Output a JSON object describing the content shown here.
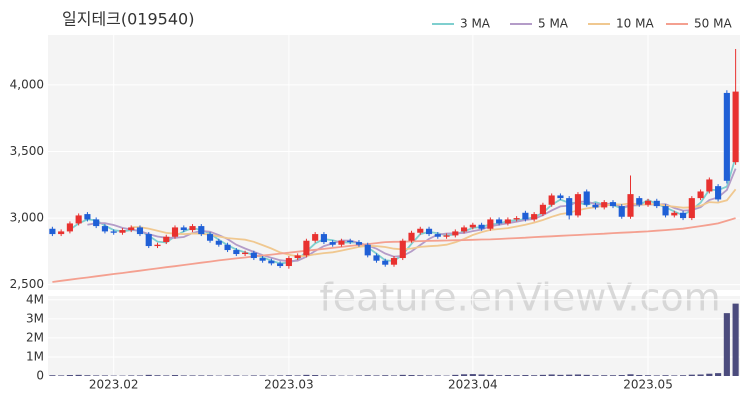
{
  "chart_data": {
    "type": "candlestick",
    "title": "일지테크(019540)",
    "watermark": "feature.enViewV.com",
    "categories": [
      null,
      null,
      null,
      null,
      null,
      null,
      null,
      "2023.02",
      null,
      null,
      null,
      null,
      null,
      null,
      null,
      null,
      null,
      null,
      null,
      null,
      null,
      null,
      null,
      null,
      null,
      null,
      null,
      "2023.03",
      null,
      null,
      null,
      null,
      null,
      null,
      null,
      null,
      null,
      null,
      null,
      null,
      null,
      null,
      null,
      null,
      null,
      null,
      null,
      null,
      "2023.04",
      null,
      null,
      null,
      null,
      null,
      null,
      null,
      null,
      null,
      null,
      null,
      null,
      null,
      null,
      null,
      null,
      null,
      null,
      null,
      "2023.05",
      null,
      null,
      null,
      null,
      null,
      null,
      null,
      null,
      null,
      null
    ],
    "open": [
      2920,
      2880,
      2900,
      2960,
      3030,
      2990,
      2940,
      2900,
      2890,
      2910,
      2930,
      2880,
      2790,
      2820,
      2860,
      2930,
      2910,
      2940,
      2880,
      2830,
      2800,
      2760,
      2730,
      2740,
      2700,
      2680,
      2660,
      2640,
      2700,
      2720,
      2830,
      2880,
      2820,
      2800,
      2830,
      2820,
      2800,
      2720,
      2680,
      2650,
      2700,
      2830,
      2890,
      2920,
      2880,
      2860,
      2870,
      2900,
      2930,
      2950,
      2920,
      2990,
      2960,
      2990,
      3040,
      2990,
      3030,
      3100,
      3170,
      3150,
      3020,
      3200,
      3100,
      3080,
      3120,
      3090,
      3010,
      3150,
      3100,
      3130,
      3090,
      3020,
      3040,
      3000,
      3150,
      3200,
      3240,
      3940,
      3420
    ],
    "high": [
      2935,
      2915,
      2975,
      3035,
      3045,
      3005,
      2955,
      2915,
      2925,
      2945,
      2945,
      2895,
      2815,
      2875,
      2945,
      2945,
      2955,
      2955,
      2895,
      2845,
      2815,
      2775,
      2755,
      2755,
      2715,
      2695,
      2675,
      2715,
      2735,
      2845,
      2895,
      2895,
      2835,
      2845,
      2845,
      2835,
      2815,
      2735,
      2695,
      2715,
      2845,
      2905,
      2935,
      2935,
      2895,
      2885,
      2915,
      2945,
      2965,
      2965,
      3005,
      3005,
      3005,
      3015,
      3055,
      3045,
      3115,
      3185,
      3185,
      3165,
      3195,
      3215,
      3115,
      3135,
      3135,
      3105,
      3320,
      3165,
      3145,
      3145,
      3105,
      3055,
      3055,
      3165,
      3215,
      3305,
      3255,
      3960,
      4270
    ],
    "low": [
      2865,
      2865,
      2885,
      2945,
      2975,
      2925,
      2885,
      2875,
      2875,
      2895,
      2865,
      2775,
      2775,
      2805,
      2845,
      2895,
      2895,
      2865,
      2815,
      2785,
      2745,
      2715,
      2715,
      2685,
      2665,
      2645,
      2625,
      2620,
      2685,
      2705,
      2815,
      2805,
      2785,
      2785,
      2805,
      2785,
      2705,
      2665,
      2635,
      2635,
      2685,
      2815,
      2875,
      2865,
      2845,
      2845,
      2855,
      2885,
      2915,
      2905,
      2905,
      2945,
      2945,
      2975,
      2975,
      2975,
      3015,
      3085,
      3135,
      2990,
      3005,
      3085,
      3065,
      3065,
      3075,
      2995,
      2995,
      3085,
      3085,
      3075,
      3005,
      3005,
      2985,
      2985,
      3135,
      3185,
      3125,
      3260,
      3400
    ],
    "close": [
      2880,
      2900,
      2960,
      3020,
      2990,
      2940,
      2900,
      2890,
      2910,
      2930,
      2880,
      2790,
      2800,
      2860,
      2930,
      2910,
      2940,
      2880,
      2830,
      2800,
      2760,
      2730,
      2740,
      2700,
      2680,
      2660,
      2640,
      2700,
      2720,
      2830,
      2880,
      2820,
      2800,
      2830,
      2820,
      2800,
      2720,
      2680,
      2650,
      2700,
      2830,
      2890,
      2920,
      2880,
      2860,
      2870,
      2900,
      2930,
      2950,
      2920,
      2990,
      2960,
      2990,
      3000,
      2990,
      3030,
      3100,
      3170,
      3150,
      3020,
      3180,
      3100,
      3080,
      3120,
      3090,
      3010,
      3180,
      3100,
      3130,
      3090,
      3020,
      3040,
      3000,
      3150,
      3200,
      3290,
      3140,
      3280,
      3950
    ],
    "volume": [
      40000,
      30000,
      50000,
      60000,
      40000,
      30000,
      30000,
      20000,
      20000,
      30000,
      30000,
      60000,
      40000,
      30000,
      50000,
      30000,
      30000,
      30000,
      30000,
      20000,
      30000,
      30000,
      20000,
      30000,
      30000,
      20000,
      30000,
      40000,
      30000,
      60000,
      50000,
      30000,
      30000,
      20000,
      20000,
      30000,
      40000,
      30000,
      40000,
      30000,
      60000,
      50000,
      40000,
      30000,
      30000,
      20000,
      60000,
      90000,
      100000,
      80000,
      60000,
      40000,
      50000,
      40000,
      50000,
      40000,
      60000,
      80000,
      60000,
      70000,
      80000,
      60000,
      40000,
      40000,
      40000,
      50000,
      90000,
      50000,
      40000,
      30000,
      40000,
      30000,
      40000,
      70000,
      80000,
      120000,
      150000,
      3300000,
      3800000
    ],
    "up_color": "#e8312f",
    "down_color": "#1f5fd6",
    "volume_color": "#4b4b7d",
    "ylim": [
      2460,
      4375
    ],
    "yticks": [
      {
        "value": 2500,
        "label": "2,500"
      },
      {
        "value": 3000,
        "label": "3,000"
      },
      {
        "value": 3500,
        "label": "3,500"
      },
      {
        "value": 4000,
        "label": "4,000"
      }
    ],
    "volume_ylim": [
      0,
      4200000
    ],
    "volume_yticks": [
      0,
      {
        "value": 1000000,
        "label": "1M"
      },
      {
        "value": 2000000,
        "label": "2M"
      },
      {
        "value": 3000000,
        "label": "3M"
      },
      {
        "value": 4000000,
        "label": "4M"
      }
    ],
    "series": [
      {
        "name": "3 MA",
        "color": "#7fcfcf"
      },
      {
        "name": "5 MA",
        "color": "#b49cc8"
      },
      {
        "name": "10 MA",
        "color": "#f0c890"
      },
      {
        "name": "50 MA",
        "color": "#f4a090",
        "values": [
          2520,
          2529,
          2537,
          2546,
          2554,
          2563,
          2571,
          2580,
          2588,
          2597,
          2605,
          2614,
          2622,
          2631,
          2639,
          2648,
          2656,
          2665,
          2673,
          2682,
          2690,
          2697,
          2704,
          2712,
          2719,
          2726,
          2733,
          2740,
          2748,
          2755,
          2762,
          2769,
          2776,
          2784,
          2791,
          2798,
          2805,
          2812,
          2820,
          2822,
          2823,
          2825,
          2827,
          2829,
          2830,
          2832,
          2834,
          2835,
          2837,
          2839,
          2840,
          2843,
          2847,
          2850,
          2853,
          2857,
          2860,
          2863,
          2867,
          2870,
          2873,
          2877,
          2880,
          2883,
          2887,
          2890,
          2893,
          2897,
          2900,
          2905,
          2910,
          2915,
          2920,
          2930,
          2940,
          2950,
          2960,
          2980,
          3000
        ]
      }
    ],
    "grid": true
  }
}
